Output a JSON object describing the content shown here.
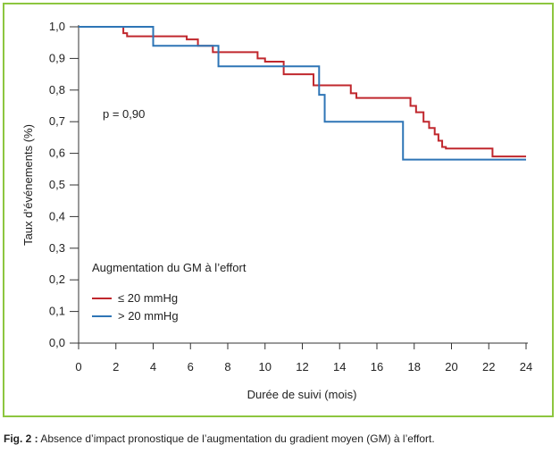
{
  "chart_data": {
    "type": "line",
    "title": "",
    "xlabel": "Durée de suivi (mois)",
    "ylabel": "Taux d’événements (%)",
    "xlim": [
      0,
      24
    ],
    "ylim": [
      0,
      1.0
    ],
    "x_ticks": [
      0,
      2,
      4,
      6,
      8,
      10,
      12,
      14,
      16,
      18,
      20,
      22,
      24
    ],
    "x_tick_labels": [
      "0",
      "2",
      "4",
      "6",
      "8",
      "10",
      "12",
      "14",
      "16",
      "18",
      "20",
      "22",
      "24"
    ],
    "y_ticks": [
      0,
      0.1,
      0.2,
      0.3,
      0.4,
      0.5,
      0.6,
      0.7,
      0.8,
      0.9,
      1.0
    ],
    "y_tick_labels": [
      "0,0",
      "0,1",
      "0,2",
      "0,3",
      "0,4",
      "0,5",
      "0,6",
      "0,7",
      "0,8",
      "0,9",
      "1,0"
    ],
    "grid": false,
    "step": true,
    "annotation": "p = 0,90",
    "legend_title": "Augmentation du GM à l’effort",
    "legend_position": "lower-left",
    "series": [
      {
        "name": "≤ 20 mmHg",
        "color": "#c0272d",
        "x": [
          0,
          2.4,
          2.6,
          5.8,
          6.4,
          7.2,
          9.6,
          10.0,
          11.0,
          12.6,
          14.6,
          14.9,
          17.8,
          18.1,
          18.5,
          18.8,
          19.1,
          19.3,
          19.5,
          19.7,
          22.2,
          24.0
        ],
        "y": [
          1.0,
          0.98,
          0.97,
          0.96,
          0.94,
          0.92,
          0.9,
          0.89,
          0.85,
          0.815,
          0.79,
          0.775,
          0.75,
          0.73,
          0.7,
          0.68,
          0.66,
          0.64,
          0.62,
          0.615,
          0.59,
          0.59
        ]
      },
      {
        "name": "> 20 mmHg",
        "color": "#2e75b6",
        "x": [
          0,
          4.0,
          7.5,
          12.9,
          13.2,
          17.4,
          24.0
        ],
        "y": [
          1.0,
          0.94,
          0.875,
          0.785,
          0.7,
          0.58,
          0.58
        ]
      }
    ]
  },
  "caption": {
    "label": "Fig. 2 :",
    "text": " Absence d’impact pronostique de l’augmentation du gradient moyen (GM) à l’effort."
  }
}
